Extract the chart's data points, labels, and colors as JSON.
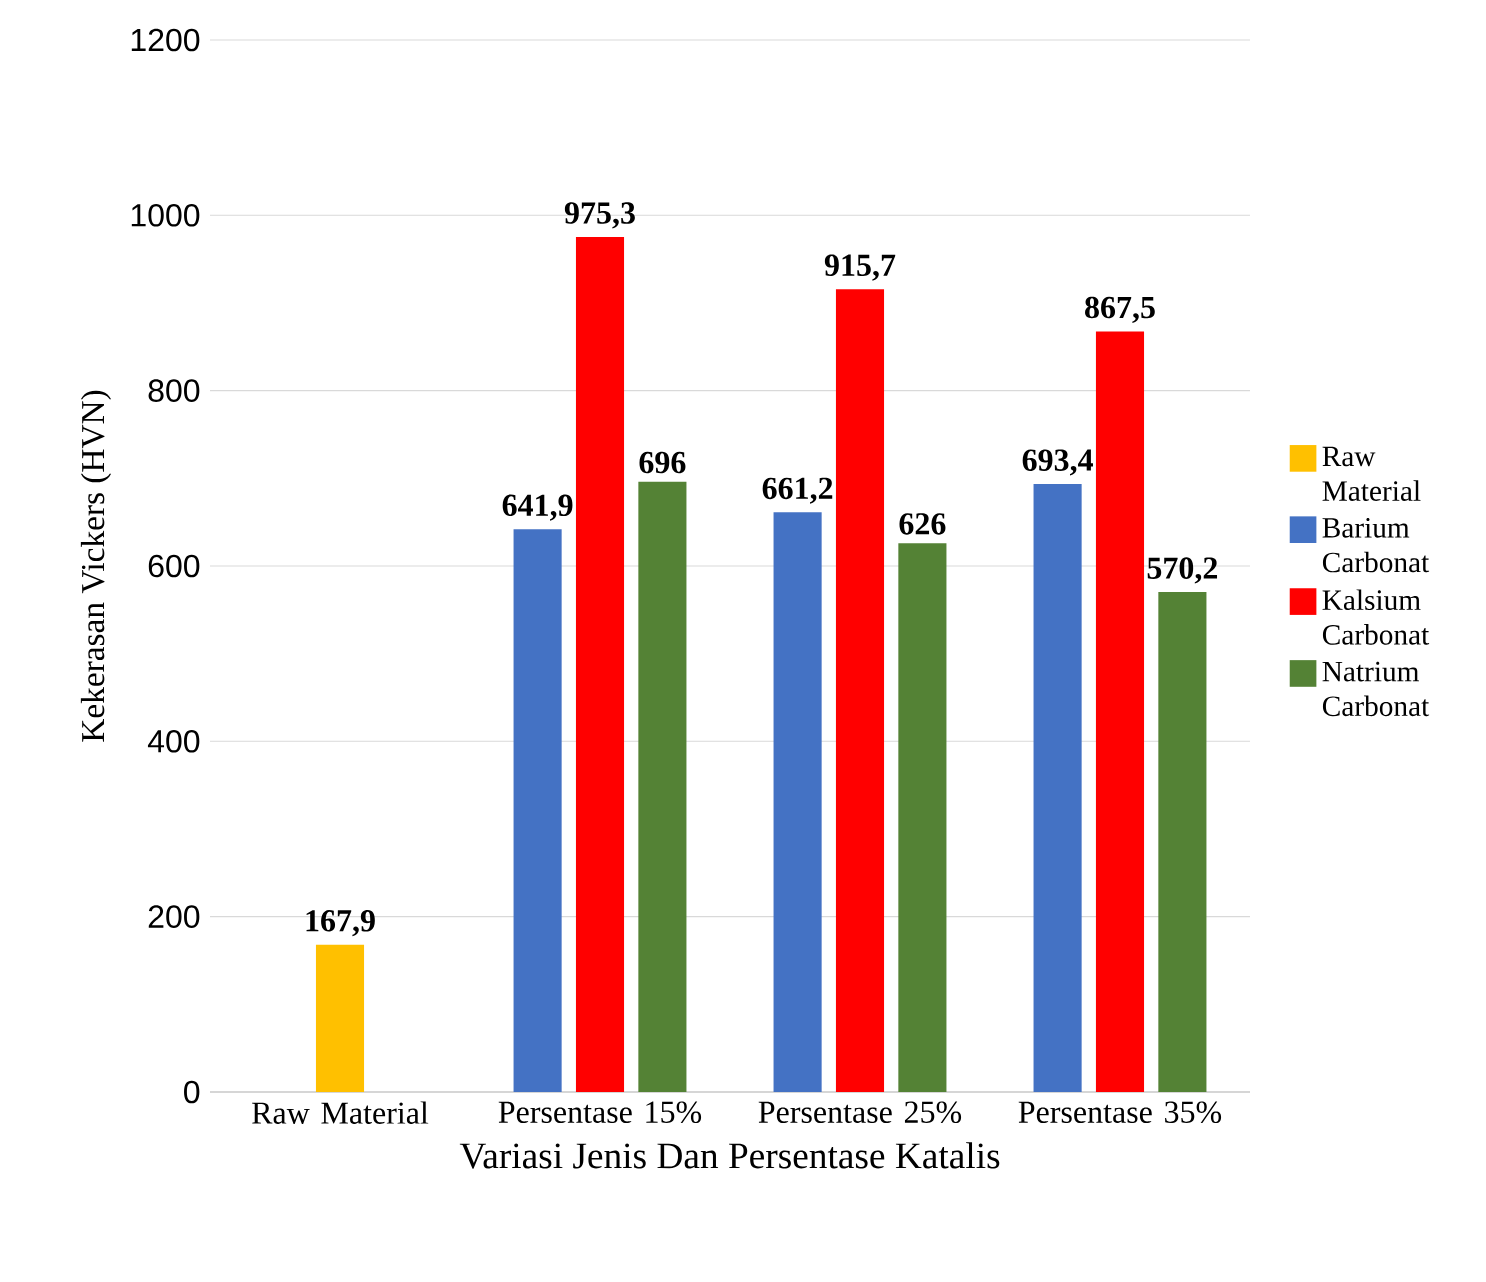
{
  "chart_data": {
    "type": "bar",
    "xlabel": "Variasi Jenis Dan Persentase Katalis",
    "ylabel": "Kekerasan Vickers  (HVN)",
    "categories": [
      "Raw Material",
      "Persentase 15%",
      "Persentase 25%",
      "Persentase 35%"
    ],
    "series": [
      {
        "name": "Raw Material",
        "color": "#ffc000",
        "values": [
          167.9,
          null,
          null,
          null
        ],
        "value_labels": [
          "167,9",
          null,
          null,
          null
        ]
      },
      {
        "name": "Barium Carbonat",
        "color": "#4472c4",
        "values": [
          null,
          641.9,
          661.2,
          693.4
        ],
        "value_labels": [
          null,
          "641,9",
          "661,2",
          "693,4"
        ]
      },
      {
        "name": "Kalsium Carbonat",
        "color": "#ff0000",
        "values": [
          null,
          975.3,
          915.7,
          867.5
        ],
        "value_labels": [
          null,
          "975,3",
          "915,7",
          "867,5"
        ]
      },
      {
        "name": "Natrium Carbonat",
        "color": "#548235",
        "values": [
          null,
          696,
          626,
          570.2
        ],
        "value_labels": [
          null,
          "696",
          "626",
          "570,2"
        ]
      }
    ],
    "ylim": [
      0,
      1200
    ],
    "yticks": [
      0,
      200,
      400,
      600,
      800,
      1000,
      1200
    ],
    "grid": "y",
    "legend": "right"
  }
}
